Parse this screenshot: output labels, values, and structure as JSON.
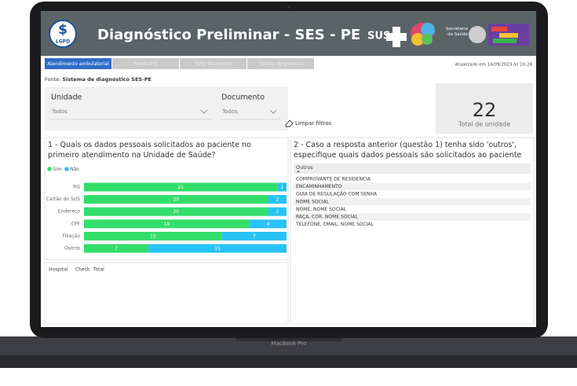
{
  "header": {
    "title": "Diagnóstico Preliminar - SES - PE",
    "logo": "LGPD",
    "sus": "SUS",
    "secretaria": "Secretaria da Saúde"
  },
  "tabs": {
    "items": [
      "Atendimento ambulatorial",
      "Prontuário",
      "Setor financeiro",
      "Gestão de pessoas"
    ],
    "active": 0
  },
  "updated": "Atualizado em 14/09/2023 às 10:28",
  "source": {
    "label": "Fonte:",
    "text": "Sistema de diagnóstico SES-PE"
  },
  "filters": [
    {
      "label": "Unidade",
      "value": "Todos"
    },
    {
      "label": "Documento",
      "value": "Todos"
    }
  ],
  "clear_filters": "Limpar filtros",
  "card": {
    "value": "22",
    "label": "Total de unidade"
  },
  "chart_data": {
    "type": "bar",
    "orientation": "horizontal",
    "stacked": true,
    "title": "1 - Quais os dados pessoais solicitados ao paciente no primeiro atendimento na Unidade de Saúde?",
    "categories": [
      "RG",
      "Cartão do SUS",
      "Endereço",
      "CPF",
      "Filiação",
      "Outros"
    ],
    "series": [
      {
        "name": "Sim",
        "color": "#33dd6a",
        "values": [
          21,
          20,
          20,
          18,
          15,
          7
        ]
      },
      {
        "name": "Não",
        "color": "#28c3f4",
        "values": [
          1,
          2,
          2,
          4,
          7,
          15
        ]
      }
    ]
  },
  "table1": {
    "columns": [
      "Hospital",
      "Check",
      "Total"
    ]
  },
  "table2": {
    "title": "2 - Caso a resposta anterior (questão 1) tenha sido 'outros', especifique quais dados pessoais são solicitados ao paciente",
    "column": "Outros",
    "rows": [
      "COMPROVANTE DE RESIDENCIA",
      "ENCAMINHAMENTO",
      "GUIA DE REGULAÇÃO COM SENHA",
      "NOME SOCIAL",
      "NOME, NOME SOCIAL",
      "RAÇA, COR, NOME SOCIAL",
      "TELEFONE, EMAIL, NOME SOCIAL"
    ]
  },
  "device": "MacBook Pro"
}
